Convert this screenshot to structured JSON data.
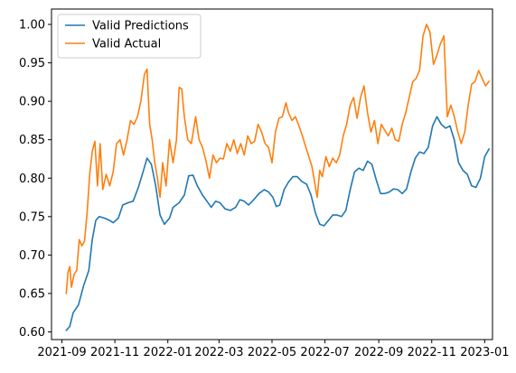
{
  "chart_data": {
    "type": "line",
    "title": "",
    "xlabel": "",
    "ylabel": "",
    "xlim": [
      "2021-08-20",
      "2023-01-10"
    ],
    "ylim": [
      0.59,
      1.02
    ],
    "x_ticks": [
      "2021-09",
      "2021-11",
      "2022-01",
      "2022-03",
      "2022-05",
      "2022-07",
      "2022-09",
      "2022-11",
      "2023-01"
    ],
    "y_ticks": [
      "0.60",
      "0.65",
      "0.70",
      "0.75",
      "0.80",
      "0.85",
      "0.90",
      "0.95",
      "1.00"
    ],
    "grid": false,
    "legend": "top-left",
    "series": [
      {
        "name": "Valid Predictions",
        "color": "#1f77b4",
        "points": [
          [
            "2021-09-06",
            0.602
          ],
          [
            "2021-09-10",
            0.607
          ],
          [
            "2021-09-14",
            0.625
          ],
          [
            "2021-09-20",
            0.635
          ],
          [
            "2021-09-26",
            0.66
          ],
          [
            "2021-10-02",
            0.68
          ],
          [
            "2021-10-06",
            0.72
          ],
          [
            "2021-10-10",
            0.745
          ],
          [
            "2021-10-14",
            0.75
          ],
          [
            "2021-10-20",
            0.748
          ],
          [
            "2021-10-26",
            0.745
          ],
          [
            "2021-10-30",
            0.742
          ],
          [
            "2021-11-05",
            0.748
          ],
          [
            "2021-11-10",
            0.765
          ],
          [
            "2021-11-16",
            0.768
          ],
          [
            "2021-11-22",
            0.77
          ],
          [
            "2021-11-28",
            0.788
          ],
          [
            "2021-12-04",
            0.81
          ],
          [
            "2021-12-08",
            0.826
          ],
          [
            "2021-12-13",
            0.818
          ],
          [
            "2021-12-18",
            0.79
          ],
          [
            "2021-12-23",
            0.752
          ],
          [
            "2021-12-28",
            0.74
          ],
          [
            "2022-01-03",
            0.748
          ],
          [
            "2022-01-07",
            0.762
          ],
          [
            "2022-01-14",
            0.768
          ],
          [
            "2022-01-20",
            0.778
          ],
          [
            "2022-01-25",
            0.803
          ],
          [
            "2022-01-30",
            0.804
          ],
          [
            "2022-02-04",
            0.79
          ],
          [
            "2022-02-10",
            0.778
          ],
          [
            "2022-02-15",
            0.77
          ],
          [
            "2022-02-20",
            0.762
          ],
          [
            "2022-02-25",
            0.77
          ],
          [
            "2022-03-02",
            0.768
          ],
          [
            "2022-03-08",
            0.76
          ],
          [
            "2022-03-14",
            0.758
          ],
          [
            "2022-03-20",
            0.762
          ],
          [
            "2022-03-25",
            0.772
          ],
          [
            "2022-03-30",
            0.77
          ],
          [
            "2022-04-04",
            0.765
          ],
          [
            "2022-04-10",
            0.772
          ],
          [
            "2022-04-16",
            0.78
          ],
          [
            "2022-04-22",
            0.785
          ],
          [
            "2022-04-27",
            0.782
          ],
          [
            "2022-05-02",
            0.775
          ],
          [
            "2022-05-06",
            0.763
          ],
          [
            "2022-05-10",
            0.765
          ],
          [
            "2022-05-15",
            0.785
          ],
          [
            "2022-05-20",
            0.795
          ],
          [
            "2022-05-25",
            0.802
          ],
          [
            "2022-05-30",
            0.802
          ],
          [
            "2022-06-04",
            0.796
          ],
          [
            "2022-06-10",
            0.792
          ],
          [
            "2022-06-15",
            0.778
          ],
          [
            "2022-06-20",
            0.755
          ],
          [
            "2022-06-25",
            0.74
          ],
          [
            "2022-06-30",
            0.738
          ],
          [
            "2022-07-05",
            0.745
          ],
          [
            "2022-07-10",
            0.752
          ],
          [
            "2022-07-15",
            0.752
          ],
          [
            "2022-07-20",
            0.75
          ],
          [
            "2022-07-25",
            0.758
          ],
          [
            "2022-07-30",
            0.785
          ],
          [
            "2022-08-04",
            0.808
          ],
          [
            "2022-08-09",
            0.813
          ],
          [
            "2022-08-14",
            0.81
          ],
          [
            "2022-08-19",
            0.822
          ],
          [
            "2022-08-24",
            0.818
          ],
          [
            "2022-08-29",
            0.798
          ],
          [
            "2022-09-03",
            0.78
          ],
          [
            "2022-09-08",
            0.78
          ],
          [
            "2022-09-13",
            0.782
          ],
          [
            "2022-09-18",
            0.786
          ],
          [
            "2022-09-23",
            0.785
          ],
          [
            "2022-09-28",
            0.78
          ],
          [
            "2022-10-03",
            0.786
          ],
          [
            "2022-10-08",
            0.808
          ],
          [
            "2022-10-13",
            0.826
          ],
          [
            "2022-10-18",
            0.834
          ],
          [
            "2022-10-23",
            0.832
          ],
          [
            "2022-10-28",
            0.84
          ],
          [
            "2022-11-02",
            0.868
          ],
          [
            "2022-11-07",
            0.88
          ],
          [
            "2022-11-12",
            0.87
          ],
          [
            "2022-11-17",
            0.865
          ],
          [
            "2022-11-22",
            0.868
          ],
          [
            "2022-11-27",
            0.85
          ],
          [
            "2022-12-02",
            0.82
          ],
          [
            "2022-12-07",
            0.81
          ],
          [
            "2022-12-12",
            0.805
          ],
          [
            "2022-12-17",
            0.79
          ],
          [
            "2022-12-22",
            0.788
          ],
          [
            "2022-12-27",
            0.8
          ],
          [
            "2023-01-01",
            0.828
          ],
          [
            "2023-01-06",
            0.838
          ]
        ]
      },
      {
        "name": "Valid Actual",
        "color": "#ff7f0e",
        "points": [
          [
            "2021-09-06",
            0.65
          ],
          [
            "2021-09-08",
            0.678
          ],
          [
            "2021-09-10",
            0.685
          ],
          [
            "2021-09-12",
            0.658
          ],
          [
            "2021-09-15",
            0.675
          ],
          [
            "2021-09-18",
            0.68
          ],
          [
            "2021-09-21",
            0.72
          ],
          [
            "2021-09-24",
            0.712
          ],
          [
            "2021-09-27",
            0.718
          ],
          [
            "2021-09-30",
            0.755
          ],
          [
            "2021-10-03",
            0.805
          ],
          [
            "2021-10-06",
            0.835
          ],
          [
            "2021-10-09",
            0.848
          ],
          [
            "2021-10-12",
            0.79
          ],
          [
            "2021-10-15",
            0.845
          ],
          [
            "2021-10-18",
            0.785
          ],
          [
            "2021-10-22",
            0.805
          ],
          [
            "2021-10-26",
            0.79
          ],
          [
            "2021-10-30",
            0.808
          ],
          [
            "2021-11-03",
            0.845
          ],
          [
            "2021-11-07",
            0.85
          ],
          [
            "2021-11-11",
            0.83
          ],
          [
            "2021-11-15",
            0.85
          ],
          [
            "2021-11-19",
            0.875
          ],
          [
            "2021-11-23",
            0.87
          ],
          [
            "2021-11-27",
            0.88
          ],
          [
            "2021-12-01",
            0.9
          ],
          [
            "2021-12-05",
            0.935
          ],
          [
            "2021-12-08",
            0.942
          ],
          [
            "2021-12-11",
            0.87
          ],
          [
            "2021-12-14",
            0.85
          ],
          [
            "2021-12-17",
            0.82
          ],
          [
            "2021-12-20",
            0.8
          ],
          [
            "2021-12-23",
            0.775
          ],
          [
            "2021-12-26",
            0.82
          ],
          [
            "2021-12-30",
            0.79
          ],
          [
            "2022-01-03",
            0.85
          ],
          [
            "2022-01-07",
            0.82
          ],
          [
            "2022-01-11",
            0.85
          ],
          [
            "2022-01-14",
            0.918
          ],
          [
            "2022-01-17",
            0.916
          ],
          [
            "2022-01-20",
            0.88
          ],
          [
            "2022-01-24",
            0.85
          ],
          [
            "2022-01-28",
            0.845
          ],
          [
            "2022-02-02",
            0.88
          ],
          [
            "2022-02-06",
            0.85
          ],
          [
            "2022-02-10",
            0.84
          ],
          [
            "2022-02-14",
            0.822
          ],
          [
            "2022-02-18",
            0.8
          ],
          [
            "2022-02-22",
            0.83
          ],
          [
            "2022-02-26",
            0.82
          ],
          [
            "2022-03-02",
            0.826
          ],
          [
            "2022-03-06",
            0.825
          ],
          [
            "2022-03-10",
            0.845
          ],
          [
            "2022-03-14",
            0.835
          ],
          [
            "2022-03-18",
            0.85
          ],
          [
            "2022-03-22",
            0.832
          ],
          [
            "2022-03-26",
            0.845
          ],
          [
            "2022-03-30",
            0.83
          ],
          [
            "2022-04-03",
            0.855
          ],
          [
            "2022-04-07",
            0.845
          ],
          [
            "2022-04-11",
            0.848
          ],
          [
            "2022-04-15",
            0.87
          ],
          [
            "2022-04-19",
            0.86
          ],
          [
            "2022-04-23",
            0.845
          ],
          [
            "2022-04-27",
            0.84
          ],
          [
            "2022-05-01",
            0.82
          ],
          [
            "2022-05-05",
            0.86
          ],
          [
            "2022-05-09",
            0.878
          ],
          [
            "2022-05-13",
            0.88
          ],
          [
            "2022-05-17",
            0.898
          ],
          [
            "2022-05-20",
            0.885
          ],
          [
            "2022-05-24",
            0.875
          ],
          [
            "2022-05-28",
            0.88
          ],
          [
            "2022-06-01",
            0.868
          ],
          [
            "2022-06-05",
            0.855
          ],
          [
            "2022-06-09",
            0.84
          ],
          [
            "2022-06-13",
            0.826
          ],
          [
            "2022-06-16",
            0.815
          ],
          [
            "2022-06-19",
            0.795
          ],
          [
            "2022-06-22",
            0.775
          ],
          [
            "2022-06-25",
            0.81
          ],
          [
            "2022-06-28",
            0.802
          ],
          [
            "2022-07-02",
            0.828
          ],
          [
            "2022-07-06",
            0.815
          ],
          [
            "2022-07-10",
            0.826
          ],
          [
            "2022-07-14",
            0.82
          ],
          [
            "2022-07-18",
            0.83
          ],
          [
            "2022-07-22",
            0.855
          ],
          [
            "2022-07-26",
            0.87
          ],
          [
            "2022-07-30",
            0.895
          ],
          [
            "2022-08-03",
            0.905
          ],
          [
            "2022-08-07",
            0.878
          ],
          [
            "2022-08-11",
            0.905
          ],
          [
            "2022-08-15",
            0.92
          ],
          [
            "2022-08-19",
            0.885
          ],
          [
            "2022-08-23",
            0.86
          ],
          [
            "2022-08-27",
            0.875
          ],
          [
            "2022-08-31",
            0.845
          ],
          [
            "2022-09-04",
            0.87
          ],
          [
            "2022-09-08",
            0.862
          ],
          [
            "2022-09-12",
            0.855
          ],
          [
            "2022-09-16",
            0.865
          ],
          [
            "2022-09-20",
            0.85
          ],
          [
            "2022-09-24",
            0.848
          ],
          [
            "2022-09-28",
            0.87
          ],
          [
            "2022-10-02",
            0.885
          ],
          [
            "2022-10-06",
            0.905
          ],
          [
            "2022-10-10",
            0.925
          ],
          [
            "2022-10-14",
            0.93
          ],
          [
            "2022-10-18",
            0.94
          ],
          [
            "2022-10-22",
            0.985
          ],
          [
            "2022-10-26",
            1.0
          ],
          [
            "2022-10-30",
            0.99
          ],
          [
            "2022-11-03",
            0.948
          ],
          [
            "2022-11-07",
            0.96
          ],
          [
            "2022-11-11",
            0.975
          ],
          [
            "2022-11-15",
            0.985
          ],
          [
            "2022-11-19",
            0.88
          ],
          [
            "2022-11-23",
            0.895
          ],
          [
            "2022-11-27",
            0.88
          ],
          [
            "2022-12-01",
            0.86
          ],
          [
            "2022-12-05",
            0.845
          ],
          [
            "2022-12-09",
            0.86
          ],
          [
            "2022-12-13",
            0.895
          ],
          [
            "2022-12-17",
            0.922
          ],
          [
            "2022-12-21",
            0.926
          ],
          [
            "2022-12-25",
            0.94
          ],
          [
            "2022-12-29",
            0.93
          ],
          [
            "2023-01-02",
            0.92
          ],
          [
            "2023-01-06",
            0.926
          ]
        ]
      }
    ]
  }
}
